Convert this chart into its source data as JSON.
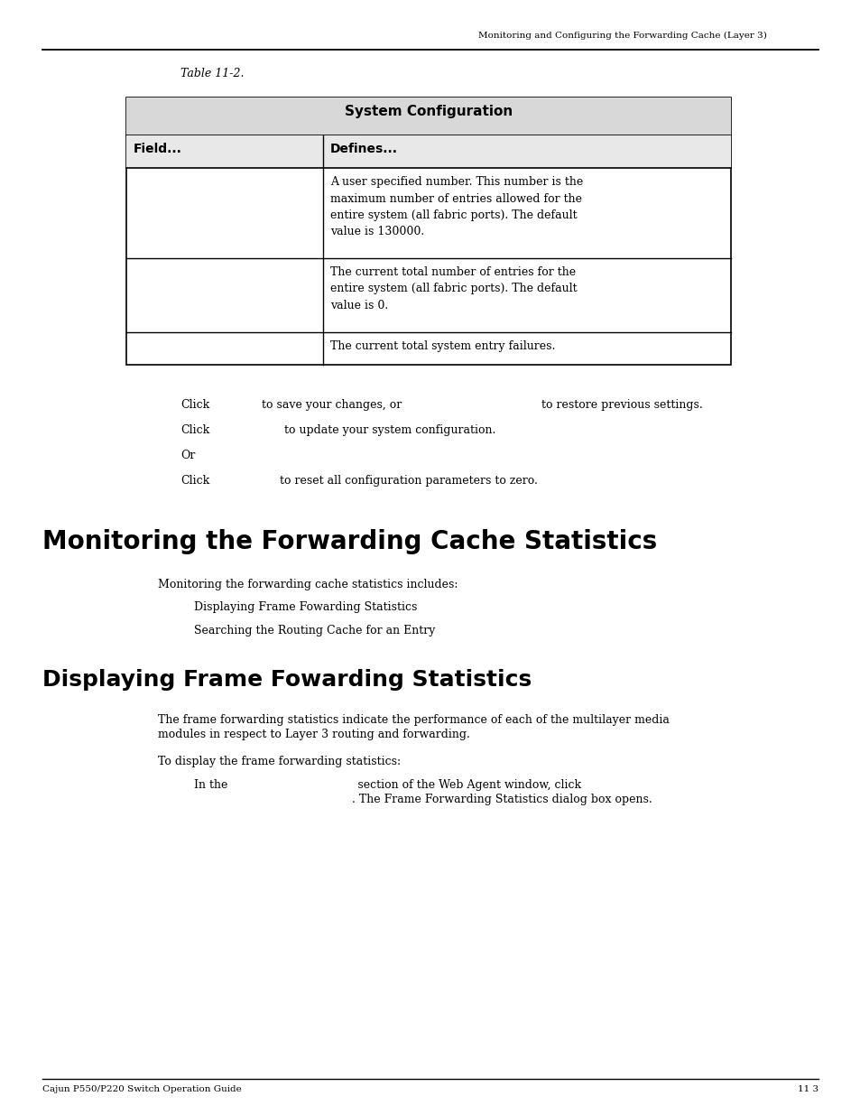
{
  "page_header": "Monitoring and Configuring the Forwarding Cache (Layer 3)",
  "table_caption": "Table 11-2.",
  "table_title": "System Configuration",
  "col1_header": "Field...",
  "col2_header": "Defines...",
  "table_rows": [
    {
      "field": "",
      "defines": "A user specified number. This number is the\nmaximum number of entries allowed for the\nentire system (all fabric ports). The default\nvalue is 130000."
    },
    {
      "field": "",
      "defines": "The current total number of entries for the\nentire system (all fabric ports). The default\nvalue is 0."
    },
    {
      "field": "",
      "defines": "The current total system entry failures."
    }
  ],
  "click_lines": [
    [
      "Click",
      "to save your changes, or",
      "to restore previous settings."
    ],
    [
      "Click",
      "to update your system configuration.",
      ""
    ],
    [
      "Or",
      "",
      ""
    ],
    [
      "Click",
      "to reset all configuration parameters to zero.",
      ""
    ]
  ],
  "section1_title": "Monitoring the Forwarding Cache Statistics",
  "section1_intro": "Monitoring the forwarding cache statistics includes:",
  "section1_bullets": [
    "Displaying Frame Fowarding Statistics",
    "Searching the Routing Cache for an Entry"
  ],
  "section2_title": "Displaying Frame Fowarding Statistics",
  "section2_para1_line1": "The frame forwarding statistics indicate the performance of each of the multilayer media",
  "section2_para1_line2": "modules in respect to Layer 3 routing and forwarding.",
  "section2_para2": "To display the frame forwarding statistics:",
  "section2_step_line1": "In the                                    section of the Web Agent window, click",
  "section2_step_line2": "                    . The Frame Forwarding Statistics dialog box opens.",
  "footer_left": "Cajun P550/P220 Switch Operation Guide",
  "footer_right": "11 3",
  "bg_color": "#ffffff",
  "text_color": "#000000"
}
